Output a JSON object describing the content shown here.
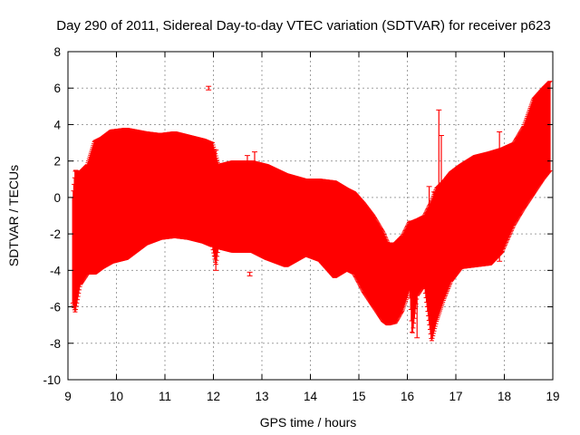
{
  "chart_data": {
    "type": "errorbar",
    "title": "Day 290 of 2011, Sidereal Day-to-day VTEC variation (SDTVAR) for receiver p623",
    "xlabel": "GPS time / hours",
    "ylabel": "SDTVAR / TECUs",
    "xlim": [
      9,
      19
    ],
    "ylim": [
      -10,
      8
    ],
    "xticks": [
      "9",
      "10",
      "11",
      "12",
      "13",
      "14",
      "15",
      "16",
      "17",
      "18",
      "19"
    ],
    "yticks": [
      "-10",
      "-8",
      "-6",
      "-4",
      "-2",
      "0",
      "2",
      "4",
      "6",
      "8"
    ],
    "grid": true,
    "series": [
      {
        "name": "SDTVAR",
        "color": "#ff0000",
        "envelope": [
          [
            9.1,
            -5.8,
            0.0
          ],
          [
            9.15,
            -6.3,
            1.5
          ],
          [
            9.25,
            -4.8,
            1.4
          ],
          [
            9.4,
            -4.2,
            1.8
          ],
          [
            9.55,
            -4.2,
            3.1
          ],
          [
            9.7,
            -3.9,
            3.3
          ],
          [
            9.9,
            -3.6,
            3.7
          ],
          [
            10.2,
            -3.4,
            3.8
          ],
          [
            10.6,
            -2.6,
            3.6
          ],
          [
            10.9,
            -2.3,
            3.5
          ],
          [
            11.2,
            -2.2,
            3.6
          ],
          [
            11.5,
            -2.3,
            3.4
          ],
          [
            11.8,
            -2.5,
            3.2
          ],
          [
            11.98,
            -2.7,
            3.0
          ],
          [
            12.05,
            -3.7,
            2.3
          ],
          [
            12.1,
            -2.8,
            1.8
          ],
          [
            12.4,
            -3.0,
            2.0
          ],
          [
            12.8,
            -3.0,
            2.0
          ],
          [
            13.1,
            -3.4,
            1.8
          ],
          [
            13.5,
            -3.8,
            1.3
          ],
          [
            13.9,
            -3.2,
            1.0
          ],
          [
            14.2,
            -3.5,
            1.0
          ],
          [
            14.5,
            -4.4,
            0.9
          ],
          [
            14.75,
            -4.0,
            0.5
          ],
          [
            14.9,
            -4.2,
            0.3
          ],
          [
            15.1,
            -5.2,
            -0.3
          ],
          [
            15.3,
            -6.0,
            -1.0
          ],
          [
            15.5,
            -6.8,
            -1.9
          ],
          [
            15.6,
            -7.0,
            -2.5
          ],
          [
            15.75,
            -6.9,
            -2.5
          ],
          [
            15.9,
            -6.2,
            -2.1
          ],
          [
            16.05,
            -5.0,
            -1.3
          ],
          [
            16.1,
            -7.6,
            -1.3
          ],
          [
            16.2,
            -5.4,
            -1.2
          ],
          [
            16.35,
            -4.8,
            -1.0
          ],
          [
            16.5,
            -7.9,
            -0.2
          ],
          [
            16.6,
            -6.8,
            0.5
          ],
          [
            16.75,
            -5.6,
            0.9
          ],
          [
            16.9,
            -4.6,
            1.4
          ],
          [
            17.1,
            -3.9,
            1.8
          ],
          [
            17.4,
            -3.8,
            2.3
          ],
          [
            17.7,
            -3.7,
            2.5
          ],
          [
            17.95,
            -3.0,
            2.7
          ],
          [
            18.2,
            -1.5,
            3.0
          ],
          [
            18.4,
            -0.6,
            3.9
          ],
          [
            18.6,
            0.2,
            5.4
          ],
          [
            18.8,
            1.0,
            6.0
          ],
          [
            18.95,
            1.5,
            6.4
          ]
        ],
        "spikes": [
          [
            11.9,
            5.9,
            6.1
          ],
          [
            12.05,
            -4.0,
            2.6
          ],
          [
            12.75,
            -4.3,
            -4.1
          ],
          [
            12.7,
            1.9,
            2.3
          ],
          [
            12.85,
            1.9,
            2.5
          ],
          [
            16.2,
            -7.7,
            -1.2
          ],
          [
            16.45,
            -1.6,
            0.6
          ],
          [
            16.55,
            -1.8,
            0.3
          ],
          [
            16.65,
            -1.5,
            4.8
          ],
          [
            16.7,
            -1.2,
            3.4
          ],
          [
            17.9,
            -3.5,
            3.6
          ]
        ]
      }
    ]
  }
}
